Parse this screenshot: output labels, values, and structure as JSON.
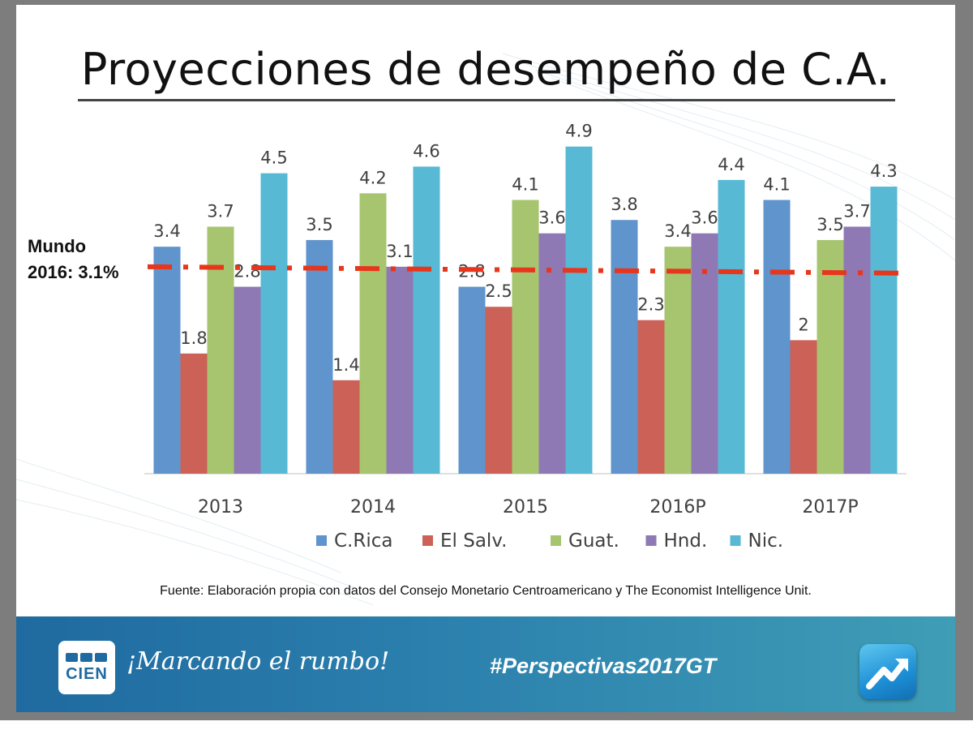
{
  "slide_title": "Proyecciones de desempeño de C.A.",
  "reference": {
    "line1": "Mundo",
    "line2": "2016: 3.1%",
    "value": 3.1
  },
  "chart_data": {
    "type": "bar",
    "title": "Proyecciones de desempeño de C.A.",
    "categories": [
      "2013",
      "2014",
      "2015",
      "2016P",
      "2017P"
    ],
    "series": [
      {
        "name": "C.Rica",
        "color": "#5f94cc",
        "values": [
          3.4,
          3.5,
          2.8,
          3.8,
          4.1
        ]
      },
      {
        "name": "El Salv.",
        "color": "#cc6158",
        "values": [
          1.8,
          1.4,
          2.5,
          2.3,
          2
        ]
      },
      {
        "name": "Guat.",
        "color": "#a6c56e",
        "values": [
          3.7,
          4.2,
          4.1,
          3.4,
          3.5
        ]
      },
      {
        "name": "Hnd.",
        "color": "#8f79b4",
        "values": [
          2.8,
          3.1,
          3.6,
          3.6,
          3.7
        ]
      },
      {
        "name": "Nic.",
        "color": "#57b9d4",
        "values": [
          4.5,
          4.6,
          4.9,
          4.4,
          4.3
        ]
      }
    ],
    "reference_line": {
      "value": 3.1,
      "color": "#e8361c",
      "style": "dash-dot"
    },
    "ylim": [
      0,
      5.2
    ],
    "legend": "bottom",
    "grid": false
  },
  "source_note": "Fuente: Elaboración propia con datos del Consejo Monetario Centroamericano y The Economist Intelligence Unit.",
  "footer": {
    "logo_text": "CIEN",
    "slogan": "¡Marcando el rumbo!",
    "hashtag": "#Perspectivas2017GT",
    "app_icon": "trend-arrow-icon"
  }
}
